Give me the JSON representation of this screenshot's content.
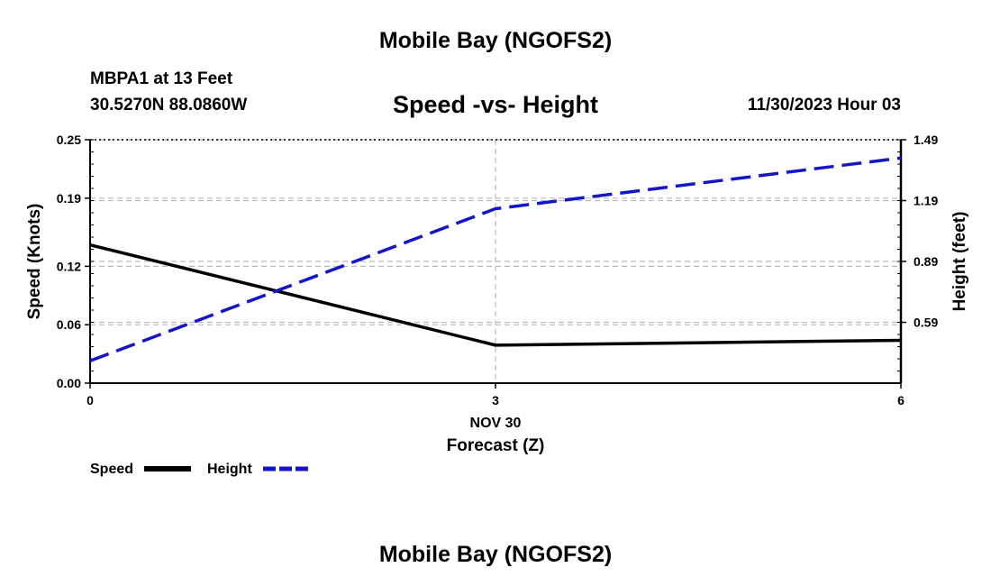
{
  "header": {
    "main_title": "Mobile Bay (NGOFS2)",
    "station": "MBPA1 at 13 Feet",
    "coords": "30.5270N  88.0860W",
    "chart_title": "Speed -vs- Height",
    "datetime": "11/30/2023 Hour 03"
  },
  "footer": {
    "title": "Mobile Bay (NGOFS2)"
  },
  "colors": {
    "speed": "#000000",
    "height": "#1515c8",
    "grid": "#bbbbbb"
  },
  "chart_data": {
    "type": "line",
    "title": "Speed -vs- Height",
    "xlabel": "Forecast (Z)",
    "xsublabel": "NOV 30",
    "ylabel": "Speed (Knots)",
    "y2label": "Height (feet)",
    "x": [
      0,
      3,
      6
    ],
    "xticks": [
      "0",
      "3",
      "6"
    ],
    "xlim": [
      0,
      6
    ],
    "ylim": [
      0,
      0.25
    ],
    "yticks": [
      "0.00",
      "0.06",
      "0.12",
      "0.19",
      "0.25"
    ],
    "y2lim": [
      0.29,
      1.49
    ],
    "y2ticks": [
      "0.59",
      "0.89",
      "1.19",
      "1.49"
    ],
    "grid": true,
    "legend_position": "bottom-left",
    "series": [
      {
        "name": "Speed",
        "axis": "left",
        "style": "solid",
        "values": [
          0.142,
          0.039,
          0.044
        ]
      },
      {
        "name": "Height",
        "axis": "right",
        "style": "dashed",
        "values": [
          0.4,
          1.15,
          1.4
        ]
      }
    ]
  }
}
